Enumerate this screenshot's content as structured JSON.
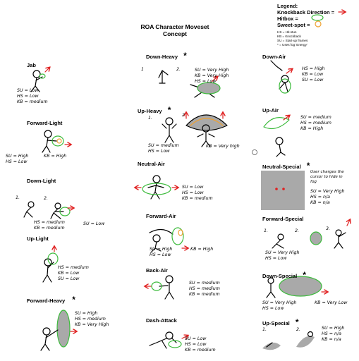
{
  "title": {
    "line1": "ROA Character Moveset",
    "line2": "Concept"
  },
  "legend": {
    "title": "Legend:",
    "knockback": "Knockback Direction =",
    "hitbox": "Hitbox =",
    "sweetspot": "Sweet-spot =",
    "notes": [
      "HS = Hit-stun",
      "KB = Knockback",
      "SU = Start-up frames",
      "* = Uses fog 'Energy'"
    ]
  },
  "colors": {
    "hitbox": "#3dbb3d",
    "sweetspot": "#f0a030",
    "knockback": "#e02020",
    "fog": "#a9a9a9",
    "ink": "#000000"
  },
  "moves": {
    "jab": {
      "name": "Jab",
      "stats": [
        "SU = Low",
        "HS = Low",
        "KB = medium"
      ]
    },
    "flight": {
      "name": "Forward-Light",
      "stats": [
        "SU = High",
        "HS = Low",
        "KB = High"
      ]
    },
    "dlight": {
      "name": "Down-Light",
      "nums": [
        "1.",
        "2."
      ],
      "stats": [
        "HS = medium",
        "KB = medium"
      ],
      "extra": "SU = Low"
    },
    "ulight": {
      "name": "Up-Light",
      "stats": [
        "HS = medium",
        "KB = Low",
        "SU = Low"
      ]
    },
    "fheavy": {
      "name": "Forward-Heavy",
      "mark": "*",
      "stats": [
        "SU = High",
        "HS = medium",
        "KB = Very High"
      ]
    },
    "dheavy": {
      "name": "Down-Heavy",
      "mark": "*",
      "nums": [
        "1",
        "2."
      ],
      "stats": [
        "SU = Very High",
        "KB = Very High",
        "HS = Low"
      ]
    },
    "uheavy": {
      "name": "Up-Heavy",
      "mark": "*",
      "nums": [
        "1.",
        "2."
      ],
      "stats": [
        "SU = medium",
        "HS = Low"
      ],
      "extra": "KB = Very high"
    },
    "nair": {
      "name": "Neutral-Air",
      "stats": [
        "SU = Low",
        "HS = Low",
        "KB = medium"
      ]
    },
    "fair": {
      "name": "Forward-Air",
      "stats": [
        "SU = High",
        "HS = Low"
      ],
      "extra": "KB = High"
    },
    "bair": {
      "name": "Back-Air",
      "stats": [
        "SU = medium",
        "HS = medium",
        "KB = medium"
      ]
    },
    "dash": {
      "name": "Dash-Attack",
      "stats": [
        "SU = Low",
        "HS = Low",
        "KB = medium"
      ]
    },
    "dair": {
      "name": "Down-Air",
      "stats": [
        "HS = High",
        "KB = Low",
        "SU = Low"
      ]
    },
    "uair": {
      "name": "Up-Air",
      "stats": [
        "SU = medium",
        "HS = medium",
        "KB = High"
      ]
    },
    "nspecial": {
      "name": "Neutral-Special",
      "mark": "*",
      "desc": [
        "User charges the",
        "cursor to hide in",
        "fog"
      ],
      "stats": [
        "SU = Very High",
        "HS = n/a",
        "KB = n/a"
      ]
    },
    "fspecial": {
      "name": "Forward-Special",
      "nums": [
        "1.",
        "2.",
        "3."
      ],
      "stats": [
        "SU = Very High",
        "HS = Low"
      ]
    },
    "dspecial": {
      "name": "Down-Special",
      "mark": "*",
      "stats": [
        "SU = Very High",
        "HS = Low"
      ],
      "extra": "KB = Very Low"
    },
    "uspecial": {
      "name": "Up-Special",
      "mark": "*",
      "nums": [
        "1.",
        "2."
      ],
      "stats": [
        "SU = High",
        "HS = n/a",
        "KB = n/a"
      ]
    }
  }
}
